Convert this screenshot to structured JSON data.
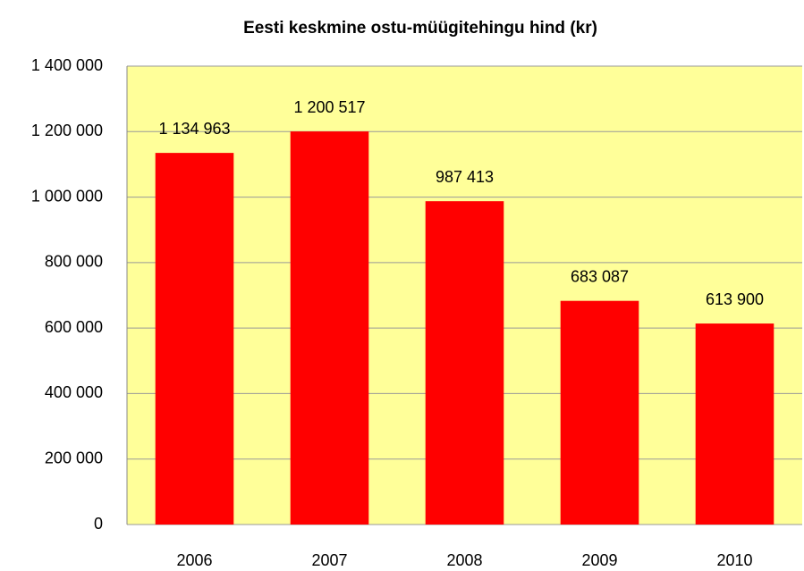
{
  "chart_data": {
    "type": "bar",
    "title": "Eesti keskmine ostu-müügitehingu hind (kr)",
    "categories": [
      "2006",
      "2007",
      "2008",
      "2009",
      "2010"
    ],
    "values": [
      1134963,
      1200517,
      987413,
      683087,
      613900
    ],
    "value_labels": [
      "1 134 963",
      "1 200 517",
      "987 413",
      "683 087",
      "613 900"
    ],
    "color": "#ff0000",
    "background": "#ffff99",
    "ylim": [
      0,
      1400000
    ],
    "yticks": [
      0,
      {
        "value": 200000,
        "label": "200 000"
      },
      {
        "value": 400000,
        "label": "400 000"
      },
      {
        "value": 600000,
        "label": "600 000"
      },
      {
        "value": 800000,
        "label": "800 000"
      },
      {
        "value": 1000000,
        "label": "1 000 000"
      },
      {
        "value": 1200000,
        "label": "1 200 000"
      },
      {
        "value": 1400000,
        "label": "1 400 000"
      }
    ],
    "grid": true
  }
}
